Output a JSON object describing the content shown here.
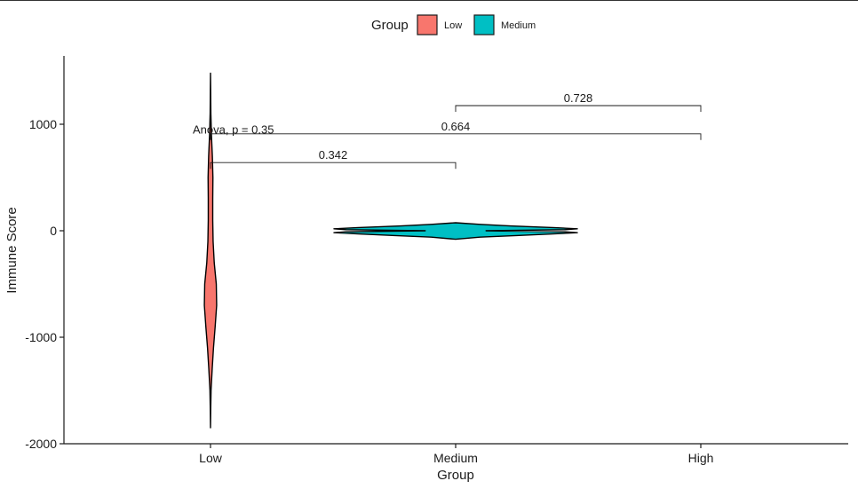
{
  "chart_data": {
    "type": "violin",
    "xlabel": "Group",
    "ylabel": "Immune Score",
    "categories": [
      "Low",
      "Medium",
      "High"
    ],
    "yticks": [
      -2000,
      -1000,
      0,
      1000
    ],
    "ylim": [
      -2000,
      1500
    ],
    "legend": {
      "title": "Group",
      "position": "top",
      "items": [
        {
          "label": "Low",
          "color": "#F8766D"
        },
        {
          "label": "Medium",
          "color": "#00BFC4"
        }
      ]
    },
    "series": [
      {
        "name": "Low",
        "category": "Low",
        "color": "#F8766D",
        "density": [
          [
            -1850,
            0.0
          ],
          [
            -1700,
            0.01
          ],
          [
            -1500,
            0.03
          ],
          [
            -1300,
            0.09
          ],
          [
            -1100,
            0.16
          ],
          [
            -900,
            0.25
          ],
          [
            -700,
            0.33
          ],
          [
            -500,
            0.31
          ],
          [
            -300,
            0.2
          ],
          [
            -100,
            0.14
          ],
          [
            100,
            0.12
          ],
          [
            300,
            0.12
          ],
          [
            500,
            0.13
          ],
          [
            700,
            0.1
          ],
          [
            900,
            0.05
          ],
          [
            1100,
            0.02
          ],
          [
            1300,
            0.01
          ],
          [
            1480,
            0.0
          ]
        ]
      },
      {
        "name": "Medium",
        "category": "Medium",
        "color": "#00BFC4",
        "density": [
          [
            -80,
            0.0
          ],
          [
            -60,
            0.2
          ],
          [
            -45,
            0.5
          ],
          [
            -30,
            0.8
          ],
          [
            -18,
            1.0
          ],
          [
            -10,
            0.9
          ],
          [
            0,
            0.25
          ],
          [
            10,
            0.9
          ],
          [
            18,
            1.0
          ],
          [
            30,
            0.8
          ],
          [
            45,
            0.45
          ],
          [
            60,
            0.2
          ],
          [
            75,
            0.0
          ]
        ]
      }
    ],
    "comparisons": [
      {
        "from": "Low",
        "to": "Medium",
        "y": 640,
        "label": "0.342"
      },
      {
        "from": "Low",
        "to": "High",
        "y": 910,
        "label": "0.664"
      },
      {
        "from": "Medium",
        "to": "High",
        "y": 1175,
        "label": "0.728"
      }
    ],
    "global_test": {
      "label": "Anova, p = 0.35",
      "category": "Low",
      "y": 870
    }
  }
}
